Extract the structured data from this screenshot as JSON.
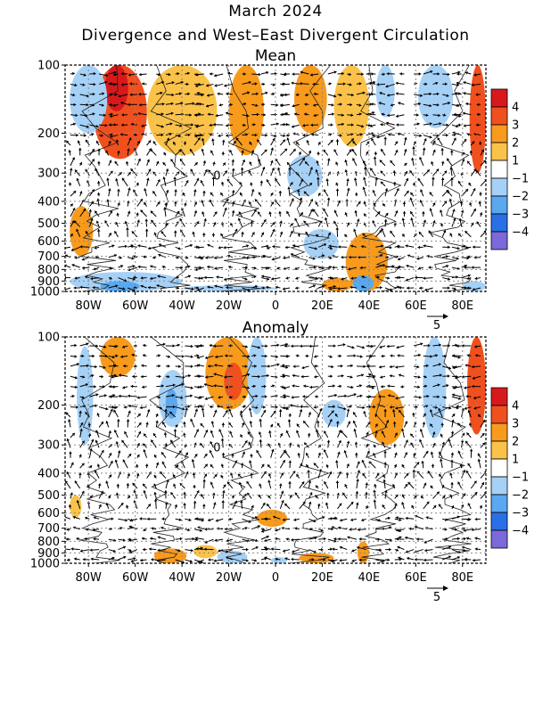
{
  "header": {
    "title": "March 2024",
    "subtitle": "Divergence and West–East Divergent Circulation"
  },
  "chart_data": [
    {
      "type": "heatmap",
      "title": "Mean",
      "x_ticks": [
        {
          "value": -80,
          "label": "80W"
        },
        {
          "value": -60,
          "label": "60W"
        },
        {
          "value": -40,
          "label": "40W"
        },
        {
          "value": -20,
          "label": "20W"
        },
        {
          "value": 0,
          "label": "0"
        },
        {
          "value": 20,
          "label": "20E"
        },
        {
          "value": 40,
          "label": "40E"
        },
        {
          "value": 60,
          "label": "60E"
        },
        {
          "value": 80,
          "label": "80E"
        }
      ],
      "xlim": [
        -90,
        90
      ],
      "y_levels": [
        100,
        200,
        300,
        400,
        500,
        600,
        700,
        800,
        900,
        1000
      ],
      "y_tick_labels": [
        "100",
        "200",
        "300",
        "400",
        "500",
        "600",
        "700",
        "800",
        "900",
        "1000"
      ],
      "ylim": [
        1000,
        100
      ],
      "y_scale": "log-pressure",
      "grid": true,
      "vector_reference": {
        "value": 5,
        "label": "5"
      },
      "contour_label": "0",
      "shaded_regions": [
        {
          "lon": [
            -78,
            -55
          ],
          "p": [
            100,
            260
          ],
          "value": 3
        },
        {
          "lon": [
            -73,
            -63
          ],
          "p": [
            100,
            160
          ],
          "value": 4
        },
        {
          "lon": [
            -55,
            -25
          ],
          "p": [
            100,
            250
          ],
          "value": 1.5
        },
        {
          "lon": [
            -20,
            -5
          ],
          "p": [
            100,
            250
          ],
          "value": 2
        },
        {
          "lon": [
            8,
            22
          ],
          "p": [
            100,
            200
          ],
          "value": 2
        },
        {
          "lon": [
            25,
            40
          ],
          "p": [
            100,
            230
          ],
          "value": 1.5
        },
        {
          "lon": [
            -88,
            -72
          ],
          "p": [
            100,
            200
          ],
          "value": -1
        },
        {
          "lon": [
            43,
            51
          ],
          "p": [
            100,
            170
          ],
          "value": -1
        },
        {
          "lon": [
            61,
            76
          ],
          "p": [
            100,
            190
          ],
          "value": -1
        },
        {
          "lon": [
            83,
            90
          ],
          "p": [
            100,
            300
          ],
          "value": 3
        },
        {
          "lon": [
            -88,
            -78
          ],
          "p": [
            420,
            700
          ],
          "value": 2
        },
        {
          "lon": [
            5,
            20
          ],
          "p": [
            250,
            380
          ],
          "value": -1
        },
        {
          "lon": [
            12,
            27
          ],
          "p": [
            530,
            720
          ],
          "value": -1.5
        },
        {
          "lon": [
            30,
            48
          ],
          "p": [
            550,
            1000
          ],
          "value": 2
        },
        {
          "lon": [
            -88,
            -40
          ],
          "p": [
            820,
            1000
          ],
          "value": -1.5
        },
        {
          "lon": [
            -75,
            -58
          ],
          "p": [
            900,
            1000
          ],
          "value": -2.5
        },
        {
          "lon": [
            -40,
            0
          ],
          "p": [
            940,
            1000
          ],
          "value": -1
        },
        {
          "lon": [
            20,
            33
          ],
          "p": [
            870,
            1000
          ],
          "value": 2
        },
        {
          "lon": [
            33,
            42
          ],
          "p": [
            850,
            1000
          ],
          "value": -2.5
        },
        {
          "lon": [
            80,
            90
          ],
          "p": [
            900,
            1000
          ],
          "value": -1.5
        }
      ],
      "colorbar": {
        "levels": [
          "4",
          "3",
          "2",
          "1",
          "−1",
          "−2",
          "−3",
          "−4"
        ],
        "colors": [
          "#d7191c",
          "#f0501e",
          "#f89a1c",
          "#fbc24a",
          "#ffffff",
          "#a6d1f7",
          "#5aa8f0",
          "#2a6fe6",
          "#7b68d9"
        ]
      }
    },
    {
      "type": "heatmap",
      "title": "Anomaly",
      "x_ticks": [
        {
          "value": -80,
          "label": "80W"
        },
        {
          "value": -60,
          "label": "60W"
        },
        {
          "value": -40,
          "label": "40W"
        },
        {
          "value": -20,
          "label": "20W"
        },
        {
          "value": 0,
          "label": "0"
        },
        {
          "value": 20,
          "label": "20E"
        },
        {
          "value": 40,
          "label": "40E"
        },
        {
          "value": 60,
          "label": "60E"
        },
        {
          "value": 80,
          "label": "80E"
        }
      ],
      "xlim": [
        -90,
        90
      ],
      "y_levels": [
        100,
        200,
        300,
        400,
        500,
        600,
        700,
        800,
        900,
        1000
      ],
      "y_tick_labels": [
        "100",
        "200",
        "300",
        "400",
        "500",
        "600",
        "700",
        "800",
        "900",
        "1000"
      ],
      "ylim": [
        1000,
        100
      ],
      "y_scale": "log-pressure",
      "grid": true,
      "vector_reference": {
        "value": 5,
        "label": "5"
      },
      "contour_label": "0",
      "shaded_regions": [
        {
          "lon": [
            -75,
            -60
          ],
          "p": [
            100,
            150
          ],
          "value": 2
        },
        {
          "lon": [
            -85,
            -78
          ],
          "p": [
            110,
            300
          ],
          "value": -1
        },
        {
          "lon": [
            -50,
            -38
          ],
          "p": [
            140,
            250
          ],
          "value": -1.5
        },
        {
          "lon": [
            -47,
            -42
          ],
          "p": [
            170,
            230
          ],
          "value": -2.5
        },
        {
          "lon": [
            -30,
            -10
          ],
          "p": [
            100,
            210
          ],
          "value": 2
        },
        {
          "lon": [
            -22,
            -14
          ],
          "p": [
            130,
            190
          ],
          "value": 3
        },
        {
          "lon": [
            -12,
            -4
          ],
          "p": [
            100,
            220
          ],
          "value": -1
        },
        {
          "lon": [
            20,
            30
          ],
          "p": [
            190,
            250
          ],
          "value": -1
        },
        {
          "lon": [
            40,
            55
          ],
          "p": [
            170,
            300
          ],
          "value": 2
        },
        {
          "lon": [
            63,
            73
          ],
          "p": [
            100,
            280
          ],
          "value": -1
        },
        {
          "lon": [
            82,
            90
          ],
          "p": [
            100,
            270
          ],
          "value": 3
        },
        {
          "lon": [
            -88,
            -83
          ],
          "p": [
            500,
            630
          ],
          "value": 1.5
        },
        {
          "lon": [
            -8,
            5
          ],
          "p": [
            580,
            690
          ],
          "value": 2
        },
        {
          "lon": [
            -52,
            -38
          ],
          "p": [
            860,
            1000
          ],
          "value": 2.5
        },
        {
          "lon": [
            -25,
            -12
          ],
          "p": [
            880,
            1000
          ],
          "value": -1.5
        },
        {
          "lon": [
            -35,
            -25
          ],
          "p": [
            830,
            950
          ],
          "value": 1.5
        },
        {
          "lon": [
            10,
            25
          ],
          "p": [
            900,
            1000
          ],
          "value": 2
        },
        {
          "lon": [
            35,
            40
          ],
          "p": [
            800,
            1000
          ],
          "value": 2
        },
        {
          "lon": [
            -2,
            5
          ],
          "p": [
            940,
            1000
          ],
          "value": -1
        }
      ],
      "colorbar": {
        "levels": [
          "4",
          "3",
          "2",
          "1",
          "−1",
          "−2",
          "−3",
          "−4"
        ],
        "colors": [
          "#d7191c",
          "#f0501e",
          "#f89a1c",
          "#fbc24a",
          "#ffffff",
          "#a6d1f7",
          "#5aa8f0",
          "#2a6fe6",
          "#7b68d9"
        ]
      }
    }
  ]
}
